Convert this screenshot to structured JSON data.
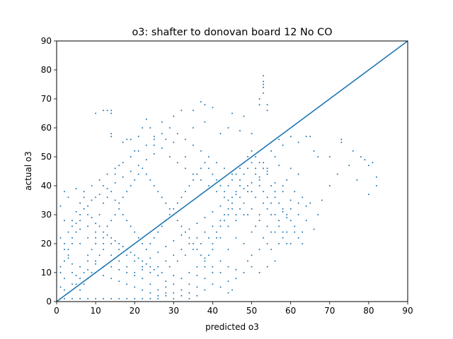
{
  "chart_data": {
    "type": "scatter",
    "title": "o3: shafter to donovan board 12 No CO",
    "xlabel": "predicted o3",
    "ylabel": "actual o3",
    "xlim": [
      0,
      90
    ],
    "ylim": [
      0,
      90
    ],
    "xticks": [
      0,
      10,
      20,
      30,
      40,
      50,
      60,
      70,
      80,
      90
    ],
    "yticks": [
      0,
      10,
      20,
      30,
      40,
      50,
      60,
      70,
      80,
      90
    ],
    "grid": false,
    "legend": "none",
    "color": "#1f77b4",
    "reference_line": {
      "x": [
        0,
        90
      ],
      "y": [
        0,
        90
      ]
    },
    "points": [
      [
        10,
        65
      ],
      [
        12,
        66
      ],
      [
        13,
        66
      ],
      [
        14,
        66
      ],
      [
        14,
        65
      ],
      [
        14,
        58
      ],
      [
        14,
        57
      ],
      [
        17,
        55
      ],
      [
        18,
        56
      ],
      [
        19,
        56
      ],
      [
        21,
        57
      ],
      [
        22,
        60
      ],
      [
        23,
        63
      ],
      [
        24,
        60
      ],
      [
        25,
        57
      ],
      [
        27,
        62
      ],
      [
        30,
        64
      ],
      [
        32,
        66
      ],
      [
        35,
        66
      ],
      [
        37,
        69
      ],
      [
        38,
        68
      ],
      [
        40,
        67
      ],
      [
        45,
        65
      ],
      [
        48,
        64
      ],
      [
        52,
        70
      ],
      [
        52,
        68
      ],
      [
        53,
        74
      ],
      [
        53,
        72
      ],
      [
        53,
        75
      ],
      [
        53,
        76
      ],
      [
        53,
        78
      ],
      [
        54,
        66
      ],
      [
        54,
        68
      ],
      [
        60,
        57
      ],
      [
        62,
        55
      ],
      [
        64,
        57
      ],
      [
        65,
        57
      ],
      [
        66,
        52
      ],
      [
        67,
        50
      ],
      [
        70,
        50
      ],
      [
        73,
        56
      ],
      [
        73,
        55
      ],
      [
        76,
        52
      ],
      [
        78,
        50
      ],
      [
        79,
        49
      ],
      [
        80,
        47
      ],
      [
        81,
        48
      ],
      [
        82,
        43
      ],
      [
        82,
        40
      ],
      [
        80,
        37
      ],
      [
        77,
        42
      ],
      [
        75,
        47
      ],
      [
        72,
        44
      ],
      [
        70,
        40
      ],
      [
        68,
        35
      ],
      [
        67,
        30
      ],
      [
        64,
        33
      ],
      [
        62,
        34
      ],
      [
        60,
        32
      ],
      [
        58,
        31
      ],
      [
        59,
        29
      ],
      [
        57,
        20
      ],
      [
        55,
        24
      ],
      [
        54,
        20
      ],
      [
        52,
        18
      ],
      [
        50,
        16
      ],
      [
        49,
        14
      ],
      [
        46,
        11
      ],
      [
        45,
        4
      ],
      [
        44,
        3
      ],
      [
        44,
        7
      ],
      [
        42,
        5
      ],
      [
        40,
        10
      ],
      [
        38,
        12
      ],
      [
        36,
        9
      ],
      [
        34,
        6
      ],
      [
        32,
        2
      ],
      [
        30,
        3
      ],
      [
        28,
        2
      ],
      [
        26,
        1
      ],
      [
        24,
        1
      ],
      [
        22,
        1
      ],
      [
        20,
        1
      ],
      [
        18,
        1
      ],
      [
        16,
        1
      ],
      [
        14,
        1
      ],
      [
        12,
        1
      ],
      [
        10,
        1
      ],
      [
        8,
        1
      ],
      [
        6,
        1
      ],
      [
        4,
        1
      ],
      [
        2,
        1
      ],
      [
        1,
        1
      ],
      [
        1,
        5
      ],
      [
        2,
        8
      ],
      [
        1,
        12
      ],
      [
        2,
        18
      ],
      [
        1,
        22
      ],
      [
        2,
        28
      ],
      [
        1,
        33
      ],
      [
        2,
        38
      ],
      [
        3,
        36
      ],
      [
        5,
        39
      ],
      [
        7,
        38
      ],
      [
        10,
        36
      ],
      [
        12,
        40
      ],
      [
        15,
        44
      ],
      [
        16,
        47
      ],
      [
        20,
        52
      ],
      [
        25,
        54
      ],
      [
        28,
        56
      ],
      [
        30,
        55
      ],
      [
        33,
        50
      ],
      [
        35,
        60
      ],
      [
        38,
        62
      ],
      [
        42,
        58
      ],
      [
        44,
        60
      ],
      [
        47,
        59
      ],
      [
        50,
        58
      ],
      [
        55,
        55
      ],
      [
        57,
        56
      ],
      [
        58,
        54
      ],
      [
        56,
        50
      ],
      [
        54,
        46
      ],
      [
        52,
        42
      ],
      [
        50,
        38
      ],
      [
        48,
        34
      ],
      [
        46,
        30
      ],
      [
        44,
        26
      ],
      [
        42,
        22
      ],
      [
        40,
        18
      ],
      [
        38,
        15
      ],
      [
        36,
        12
      ],
      [
        34,
        10
      ],
      [
        32,
        8
      ],
      [
        30,
        6
      ],
      [
        28,
        5
      ],
      [
        26,
        4
      ],
      [
        24,
        6
      ],
      [
        22,
        8
      ],
      [
        20,
        10
      ],
      [
        18,
        12
      ],
      [
        16,
        14
      ],
      [
        14,
        16
      ],
      [
        12,
        18
      ],
      [
        10,
        20
      ],
      [
        8,
        22
      ],
      [
        6,
        25
      ],
      [
        4,
        28
      ],
      [
        5,
        31
      ],
      [
        6,
        34
      ],
      [
        8,
        33
      ],
      [
        9,
        29
      ],
      [
        11,
        26
      ],
      [
        13,
        23
      ],
      [
        15,
        21
      ],
      [
        17,
        19
      ],
      [
        19,
        17
      ],
      [
        21,
        15
      ],
      [
        23,
        13
      ],
      [
        25,
        11
      ],
      [
        27,
        10
      ],
      [
        29,
        12
      ],
      [
        31,
        14
      ],
      [
        33,
        16
      ],
      [
        35,
        18
      ],
      [
        37,
        20
      ],
      [
        39,
        22
      ],
      [
        41,
        24
      ],
      [
        43,
        28
      ],
      [
        45,
        32
      ],
      [
        47,
        36
      ],
      [
        49,
        40
      ],
      [
        51,
        44
      ],
      [
        53,
        48
      ],
      [
        55,
        52
      ],
      [
        57,
        47
      ],
      [
        59,
        42
      ],
      [
        61,
        38
      ],
      [
        63,
        36
      ],
      [
        65,
        34
      ],
      [
        62,
        44
      ],
      [
        60,
        46
      ],
      [
        58,
        40
      ],
      [
        56,
        36
      ],
      [
        54,
        32
      ],
      [
        52,
        28
      ],
      [
        50,
        24
      ],
      [
        48,
        20
      ],
      [
        46,
        22
      ],
      [
        44,
        18
      ],
      [
        42,
        14
      ],
      [
        40,
        12
      ],
      [
        38,
        8
      ],
      [
        36,
        5
      ],
      [
        34,
        3
      ],
      [
        30,
        9
      ],
      [
        28,
        7
      ],
      [
        26,
        9
      ],
      [
        24,
        12
      ],
      [
        22,
        14
      ],
      [
        20,
        16
      ],
      [
        18,
        18
      ],
      [
        16,
        20
      ],
      [
        14,
        22
      ],
      [
        12,
        24
      ],
      [
        10,
        27
      ],
      [
        8,
        30
      ],
      [
        7,
        32
      ],
      [
        9,
        35
      ],
      [
        11,
        37
      ],
      [
        13,
        39
      ],
      [
        15,
        41
      ],
      [
        17,
        43
      ],
      [
        19,
        45
      ],
      [
        21,
        47
      ],
      [
        23,
        49
      ],
      [
        25,
        51
      ],
      [
        27,
        53
      ],
      [
        29,
        50
      ],
      [
        31,
        48
      ],
      [
        33,
        46
      ],
      [
        35,
        44
      ],
      [
        37,
        42
      ],
      [
        39,
        40
      ],
      [
        41,
        38
      ],
      [
        43,
        36
      ],
      [
        45,
        34
      ],
      [
        47,
        32
      ],
      [
        49,
        30
      ],
      [
        51,
        26
      ],
      [
        53,
        22
      ],
      [
        55,
        18
      ],
      [
        56,
        14
      ],
      [
        54,
        12
      ],
      [
        52,
        10
      ],
      [
        50,
        12
      ],
      [
        48,
        10
      ],
      [
        46,
        8
      ],
      [
        44,
        12
      ],
      [
        42,
        10
      ],
      [
        40,
        6
      ],
      [
        38,
        4
      ],
      [
        36,
        2
      ],
      [
        34,
        1
      ],
      [
        32,
        4
      ],
      [
        30,
        1
      ],
      [
        28,
        3
      ],
      [
        26,
        2
      ],
      [
        24,
        3
      ],
      [
        22,
        4
      ],
      [
        20,
        5
      ],
      [
        18,
        6
      ],
      [
        16,
        7
      ],
      [
        14,
        8
      ],
      [
        12,
        9
      ],
      [
        10,
        10
      ],
      [
        8,
        11
      ],
      [
        6,
        12
      ],
      [
        4,
        13
      ],
      [
        3,
        15
      ],
      [
        2,
        20
      ],
      [
        3,
        24
      ],
      [
        4,
        26
      ],
      [
        6,
        20
      ],
      [
        8,
        16
      ],
      [
        10,
        13
      ],
      [
        12,
        12
      ],
      [
        14,
        12
      ],
      [
        16,
        11
      ],
      [
        18,
        10
      ],
      [
        20,
        9
      ],
      [
        22,
        11
      ],
      [
        24,
        15
      ],
      [
        26,
        17
      ],
      [
        28,
        19
      ],
      [
        30,
        21
      ],
      [
        32,
        23
      ],
      [
        34,
        25
      ],
      [
        36,
        27
      ],
      [
        38,
        29
      ],
      [
        40,
        31
      ],
      [
        42,
        33
      ],
      [
        44,
        35
      ],
      [
        46,
        37
      ],
      [
        48,
        39
      ],
      [
        50,
        41
      ],
      [
        52,
        43
      ],
      [
        54,
        45
      ],
      [
        56,
        41
      ],
      [
        58,
        38
      ],
      [
        60,
        35
      ],
      [
        62,
        30
      ],
      [
        64,
        28
      ],
      [
        66,
        25
      ],
      [
        63,
        24
      ],
      [
        61,
        26
      ],
      [
        59,
        24
      ],
      [
        57,
        28
      ],
      [
        55,
        30
      ],
      [
        53,
        34
      ],
      [
        51,
        36
      ],
      [
        49,
        38
      ],
      [
        47,
        42
      ],
      [
        45,
        44
      ],
      [
        43,
        46
      ],
      [
        41,
        48
      ],
      [
        39,
        50
      ],
      [
        37,
        52
      ],
      [
        35,
        54
      ],
      [
        33,
        56
      ],
      [
        31,
        58
      ],
      [
        29,
        60
      ],
      [
        27,
        58
      ],
      [
        25,
        56
      ],
      [
        23,
        54
      ],
      [
        21,
        52
      ],
      [
        19,
        50
      ],
      [
        17,
        48
      ],
      [
        15,
        46
      ],
      [
        13,
        44
      ],
      [
        11,
        42
      ],
      [
        9,
        40
      ],
      [
        7,
        36
      ],
      [
        6,
        30
      ],
      [
        5,
        27
      ],
      [
        4,
        22
      ],
      [
        3,
        18
      ],
      [
        2,
        14
      ],
      [
        1,
        10
      ],
      [
        2,
        4
      ],
      [
        3,
        3
      ],
      [
        4,
        6
      ],
      [
        5,
        9
      ],
      [
        6,
        8
      ],
      [
        7,
        10
      ],
      [
        8,
        14
      ],
      [
        9,
        18
      ],
      [
        10,
        22
      ],
      [
        11,
        30
      ],
      [
        12,
        34
      ],
      [
        13,
        36
      ],
      [
        14,
        38
      ],
      [
        15,
        35
      ],
      [
        16,
        32
      ],
      [
        17,
        30
      ],
      [
        18,
        28
      ],
      [
        19,
        26
      ],
      [
        20,
        24
      ],
      [
        21,
        22
      ],
      [
        22,
        20
      ],
      [
        23,
        18
      ],
      [
        24,
        20
      ],
      [
        25,
        22
      ],
      [
        26,
        24
      ],
      [
        27,
        26
      ],
      [
        28,
        28
      ],
      [
        29,
        30
      ],
      [
        30,
        32
      ],
      [
        31,
        34
      ],
      [
        32,
        36
      ],
      [
        33,
        38
      ],
      [
        34,
        40
      ],
      [
        35,
        42
      ],
      [
        36,
        44
      ],
      [
        37,
        46
      ],
      [
        38,
        48
      ],
      [
        39,
        46
      ],
      [
        40,
        44
      ],
      [
        41,
        42
      ],
      [
        42,
        40
      ],
      [
        43,
        38
      ],
      [
        44,
        40
      ],
      [
        45,
        42
      ],
      [
        46,
        44
      ],
      [
        47,
        46
      ],
      [
        48,
        48
      ],
      [
        49,
        50
      ],
      [
        50,
        52
      ],
      [
        51,
        50
      ],
      [
        52,
        48
      ],
      [
        53,
        46
      ],
      [
        54,
        44
      ],
      [
        55,
        40
      ],
      [
        56,
        38
      ],
      [
        57,
        34
      ],
      [
        58,
        32
      ],
      [
        59,
        30
      ],
      [
        60,
        28
      ],
      [
        61,
        24
      ],
      [
        62,
        22
      ],
      [
        63,
        20
      ],
      [
        60,
        20
      ],
      [
        58,
        22
      ],
      [
        56,
        24
      ],
      [
        54,
        26
      ],
      [
        52,
        30
      ],
      [
        50,
        32
      ],
      [
        48,
        30
      ],
      [
        46,
        28
      ],
      [
        44,
        30
      ],
      [
        42,
        28
      ],
      [
        40,
        26
      ],
      [
        38,
        24
      ],
      [
        36,
        22
      ],
      [
        34,
        20
      ],
      [
        32,
        18
      ],
      [
        30,
        16
      ],
      [
        28,
        14
      ],
      [
        26,
        12
      ],
      [
        24,
        10
      ],
      [
        22,
        12
      ],
      [
        20,
        14
      ],
      [
        18,
        16
      ],
      [
        16,
        18
      ],
      [
        14,
        20
      ],
      [
        12,
        22
      ],
      [
        10,
        24
      ],
      [
        8,
        26
      ],
      [
        6,
        28
      ],
      [
        5,
        24
      ],
      [
        4,
        20
      ],
      [
        3,
        16
      ],
      [
        4,
        10
      ],
      [
        5,
        6
      ],
      [
        6,
        4
      ],
      [
        7,
        6
      ],
      [
        8,
        8
      ],
      [
        9,
        10
      ],
      [
        10,
        14
      ],
      [
        11,
        16
      ],
      [
        12,
        20
      ],
      [
        13,
        26
      ],
      [
        14,
        28
      ],
      [
        15,
        30
      ],
      [
        16,
        34
      ],
      [
        17,
        36
      ],
      [
        18,
        38
      ],
      [
        19,
        40
      ],
      [
        20,
        42
      ],
      [
        21,
        44
      ],
      [
        22,
        46
      ],
      [
        23,
        44
      ],
      [
        24,
        42
      ],
      [
        25,
        40
      ],
      [
        26,
        38
      ],
      [
        27,
        36
      ],
      [
        28,
        34
      ],
      [
        29,
        32
      ],
      [
        30,
        30
      ],
      [
        31,
        28
      ],
      [
        32,
        26
      ],
      [
        33,
        24
      ],
      [
        34,
        22
      ],
      [
        35,
        20
      ],
      [
        36,
        18
      ],
      [
        37,
        16
      ],
      [
        38,
        14
      ],
      [
        39,
        16
      ],
      [
        40,
        20
      ],
      [
        41,
        22
      ],
      [
        42,
        26
      ],
      [
        43,
        30
      ],
      [
        44,
        32
      ],
      [
        45,
        36
      ],
      [
        46,
        38
      ],
      [
        47,
        40
      ],
      [
        48,
        44
      ],
      [
        49,
        46
      ],
      [
        50,
        48
      ],
      [
        51,
        46
      ],
      [
        52,
        40
      ],
      [
        53,
        38
      ],
      [
        54,
        36
      ],
      [
        55,
        34
      ],
      [
        56,
        30
      ],
      [
        57,
        26
      ],
      [
        58,
        24
      ],
      [
        59,
        20
      ]
    ]
  }
}
